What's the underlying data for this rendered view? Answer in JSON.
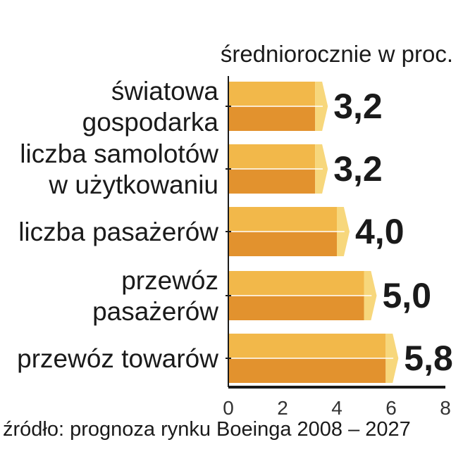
{
  "chart_data": {
    "type": "bar",
    "orientation": "horizontal",
    "subtitle": "średniorocznie w proc.",
    "categories": [
      [
        "światowa",
        "gospodarka"
      ],
      [
        "liczba samolotów",
        "w użytkowaniu"
      ],
      [
        "liczba pasażerów"
      ],
      [
        "przewóz",
        "pasażerów"
      ],
      [
        "przewóz towarów"
      ]
    ],
    "values": [
      3.2,
      3.2,
      4.0,
      5.0,
      5.8
    ],
    "value_labels": [
      "3,2",
      "3,2",
      "4,0",
      "5,0",
      "5,8"
    ],
    "xlim": [
      0,
      8
    ],
    "x_ticks": [
      0,
      2,
      4,
      6,
      8
    ],
    "grid": false,
    "colors": {
      "bar_top": "#f2b84a",
      "bar_bottom": "#e2922e",
      "bar_cap": "#f7d77c",
      "axis": "#1a1a1a"
    },
    "source": "źródło: prognoza rynku Boeinga 2008 – 2027"
  }
}
